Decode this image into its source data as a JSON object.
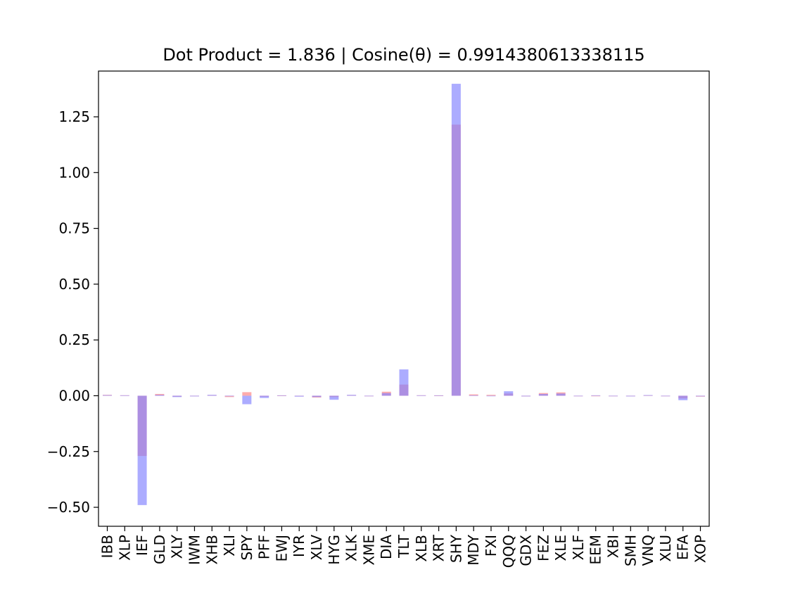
{
  "chart_data": {
    "type": "bar",
    "title": "Dot Product = 1.836 | Cosine(θ) = 0.9914380613338115",
    "xlabel": "",
    "ylabel": "",
    "ylim": [
      -0.585,
      1.455
    ],
    "yticks": [
      -0.5,
      -0.25,
      0.0,
      0.25,
      0.5,
      0.75,
      1.0,
      1.25
    ],
    "ytick_labels": [
      "−0.50",
      "−0.25",
      "0.00",
      "0.25",
      "0.50",
      "0.75",
      "1.00",
      "1.25"
    ],
    "grid": false,
    "categories": [
      "IBB",
      "XLP",
      "IEF",
      "GLD",
      "XLY",
      "IWM",
      "XHB",
      "XLI",
      "SPY",
      "PFF",
      "EWJ",
      "IYR",
      "XLV",
      "HYG",
      "XLK",
      "XME",
      "DIA",
      "TLT",
      "XLB",
      "XRT",
      "SHY",
      "MDY",
      "FXI",
      "QQQ",
      "GDX",
      "FEZ",
      "XLE",
      "XLF",
      "EEM",
      "XBI",
      "SMH",
      "VNQ",
      "XLU",
      "EFA",
      "XOP"
    ],
    "series": [
      {
        "color": "#ff8080",
        "values": [
          0.004,
          0.002,
          -0.27,
          0.008,
          -0.004,
          -0.002,
          0.003,
          -0.006,
          0.016,
          -0.004,
          0.001,
          -0.002,
          -0.008,
          -0.006,
          0.003,
          0.0,
          0.018,
          0.05,
          0.002,
          0.001,
          1.215,
          0.006,
          0.004,
          0.01,
          -0.003,
          0.012,
          0.015,
          0.0,
          0.0,
          0.0,
          -0.002,
          0.002,
          -0.002,
          -0.012,
          -0.004
        ]
      },
      {
        "color": "#8080ff",
        "values": [
          0.003,
          0.002,
          -0.49,
          0.004,
          -0.006,
          -0.003,
          0.004,
          -0.002,
          -0.038,
          -0.01,
          0.002,
          -0.004,
          -0.006,
          -0.018,
          0.004,
          0.0,
          0.012,
          0.118,
          0.002,
          0.002,
          1.398,
          0.002,
          0.0,
          0.02,
          -0.003,
          0.008,
          0.01,
          0.0,
          0.002,
          0.0,
          -0.003,
          0.003,
          -0.001,
          -0.02,
          -0.003
        ]
      }
    ]
  }
}
